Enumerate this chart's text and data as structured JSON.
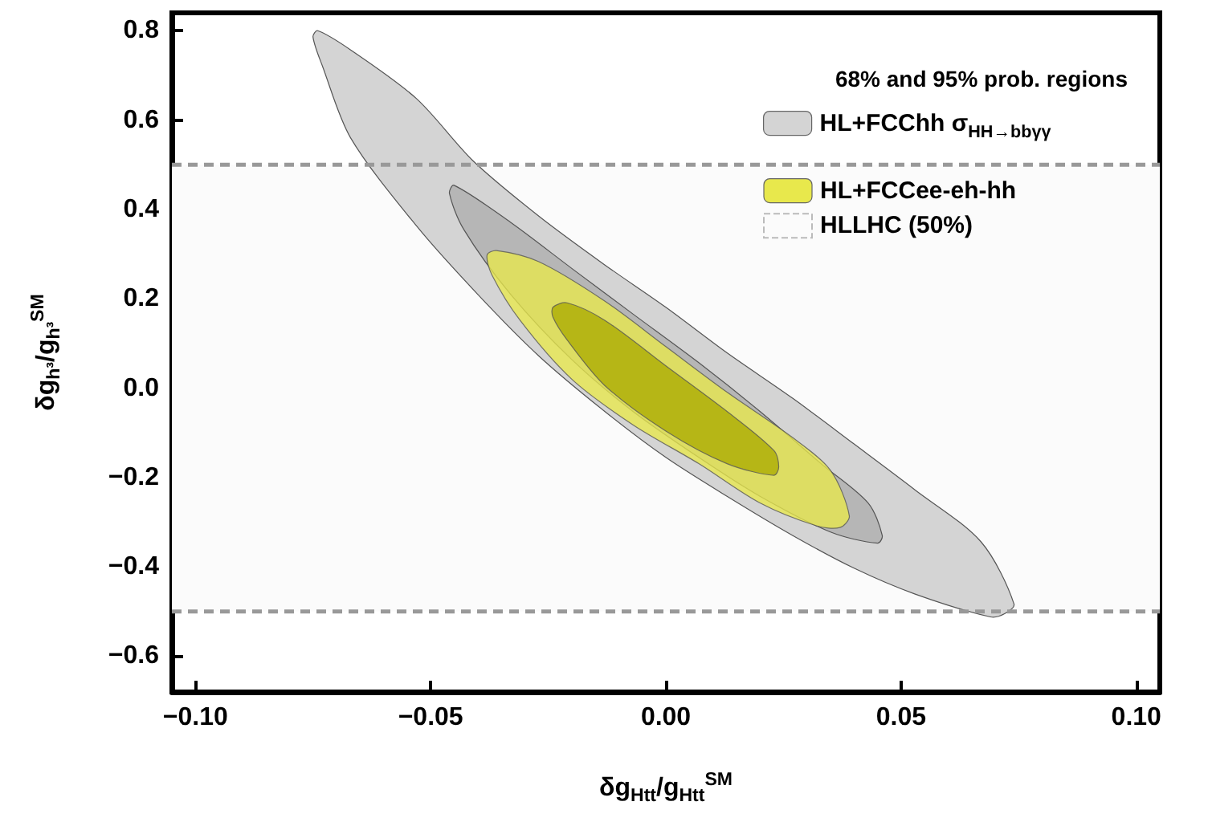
{
  "chart_data": {
    "type": "area",
    "xlabel": "δg$_{Htt}$/g$_{Htt}$$^{SM}$",
    "ylabel": "δg$_{h³}$/g$_{h³}$$^{SM}$",
    "legend_title": "68% and 95% prob. regions",
    "legend": "top right",
    "xlim": [
      -0.105,
      0.105
    ],
    "ylim": [
      -0.68,
      0.84
    ],
    "xticks": [
      {
        "value": -0.1,
        "label": "−0.10"
      },
      {
        "value": -0.05,
        "label": "−0.05"
      },
      {
        "value": 0,
        "label": "0.00"
      },
      {
        "value": 0.05,
        "label": "0.05"
      },
      {
        "value": 0.1,
        "label": "0.10"
      }
    ],
    "yticks": [
      {
        "value": -0.6,
        "label": "−0.6"
      },
      {
        "value": -0.4,
        "label": "−0.4"
      },
      {
        "value": -0.2,
        "label": "−0.2"
      },
      {
        "value": 0,
        "label": "0.0"
      },
      {
        "value": 0.2,
        "label": "0.2"
      },
      {
        "value": 0.4,
        "label": "0.4"
      },
      {
        "value": 0.6,
        "label": "0.6"
      },
      {
        "value": 0.8,
        "label": "0.8"
      }
    ],
    "bands": [
      {
        "axis": "y",
        "from": -0.5,
        "to": 0.5,
        "label": "HLLHC (50%)",
        "color": "#fbfbfb"
      }
    ],
    "ref_lines": [
      {
        "axis": "y",
        "value": 0.5,
        "color": "#999999",
        "line_style": "dashed"
      },
      {
        "axis": "y",
        "value": -0.5,
        "color": "#999999",
        "line_style": "dashed"
      }
    ],
    "series": [
      {
        "name": "HL+FCChh σ$_{HH→bbγγ}$",
        "color": "#d4d4d4",
        "x": [
          -0.074,
          -0.067,
          -0.053,
          -0.041,
          -0.027,
          -0.013,
          0.0,
          0.013,
          0.027,
          0.04,
          0.053,
          0.067,
          0.074,
          0.072,
          0.069,
          0.053,
          0.04,
          0.027,
          0.013,
          0.0,
          -0.013,
          -0.027,
          -0.04,
          -0.053,
          -0.067,
          -0.073,
          -0.075
        ],
        "values": [
          0.8,
          0.757,
          0.648,
          0.509,
          0.385,
          0.276,
          0.181,
          0.079,
          -0.023,
          -0.125,
          -0.228,
          -0.344,
          -0.483,
          -0.505,
          -0.512,
          -0.461,
          -0.403,
          -0.33,
          -0.242,
          -0.155,
          -0.052,
          0.072,
          0.21,
          0.363,
          0.56,
          0.721,
          0.786
        ]
      },
      {
        "color": "#b6b6b6",
        "x": [
          -0.045,
          -0.033,
          -0.02,
          -0.007,
          0.007,
          0.02,
          0.033,
          0.043,
          0.046,
          0.045,
          0.035,
          0.02,
          0.007,
          -0.007,
          -0.02,
          -0.033,
          -0.043,
          -0.046
        ],
        "values": [
          0.454,
          0.371,
          0.268,
          0.166,
          0.057,
          -0.052,
          -0.169,
          -0.257,
          -0.33,
          -0.347,
          -0.322,
          -0.242,
          -0.155,
          -0.052,
          0.064,
          0.21,
          0.356,
          0.436
        ]
      },
      {
        "name": "HL+FCCee‑eh‑hh",
        "color": "#e8e84c",
        "x": [
          -0.038,
          -0.036,
          -0.027,
          -0.013,
          0.0,
          0.013,
          0.027,
          0.035,
          0.039,
          0.037,
          0.032,
          0.02,
          0.007,
          -0.007,
          -0.02,
          -0.031,
          -0.037
        ],
        "values": [
          0.298,
          0.308,
          0.283,
          0.195,
          0.093,
          -0.009,
          -0.111,
          -0.184,
          -0.286,
          -0.312,
          -0.308,
          -0.257,
          -0.169,
          -0.082,
          0.02,
          0.152,
          0.254
        ]
      },
      {
        "color": "#aaaa00",
        "x": [
          -0.024,
          -0.021,
          -0.013,
          0.0,
          0.013,
          0.023,
          0.024,
          0.023,
          0.013,
          0.0,
          -0.013,
          -0.021,
          -0.024
        ],
        "values": [
          0.181,
          0.191,
          0.152,
          0.05,
          -0.052,
          -0.14,
          -0.176,
          -0.195,
          -0.169,
          -0.096,
          0.006,
          0.108,
          0.159
        ]
      }
    ]
  }
}
